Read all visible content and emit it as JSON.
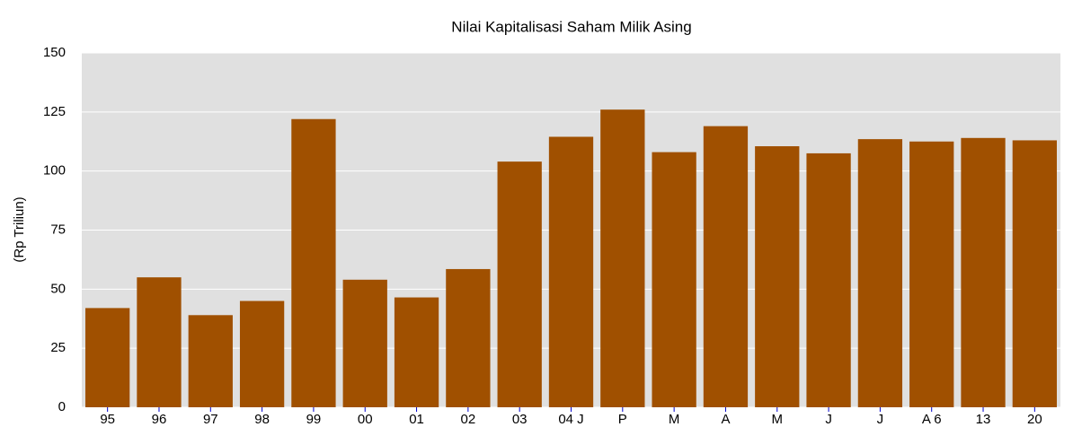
{
  "chart_data": {
    "type": "bar",
    "title": "Nilai Kapitalisasi Saham Milik Asing",
    "y_label": "(Rp Triliun)",
    "categories": [
      "95",
      "96",
      "97",
      "98",
      "99",
      "00",
      "01",
      "02",
      "03",
      "04 J",
      "P",
      "M",
      "A",
      "M",
      "J",
      "J",
      "A 6",
      "13",
      "20"
    ],
    "values": [
      42,
      55,
      39,
      45,
      122,
      54,
      46.5,
      58.5,
      104,
      114.5,
      126,
      108,
      119,
      110.5,
      107.5,
      113.5,
      112.5,
      114,
      113
    ],
    "color": "#a05000",
    "ylim": [
      0,
      150
    ],
    "yticks": [
      0,
      25,
      50,
      75,
      100,
      125,
      150
    ],
    "grid": true
  }
}
